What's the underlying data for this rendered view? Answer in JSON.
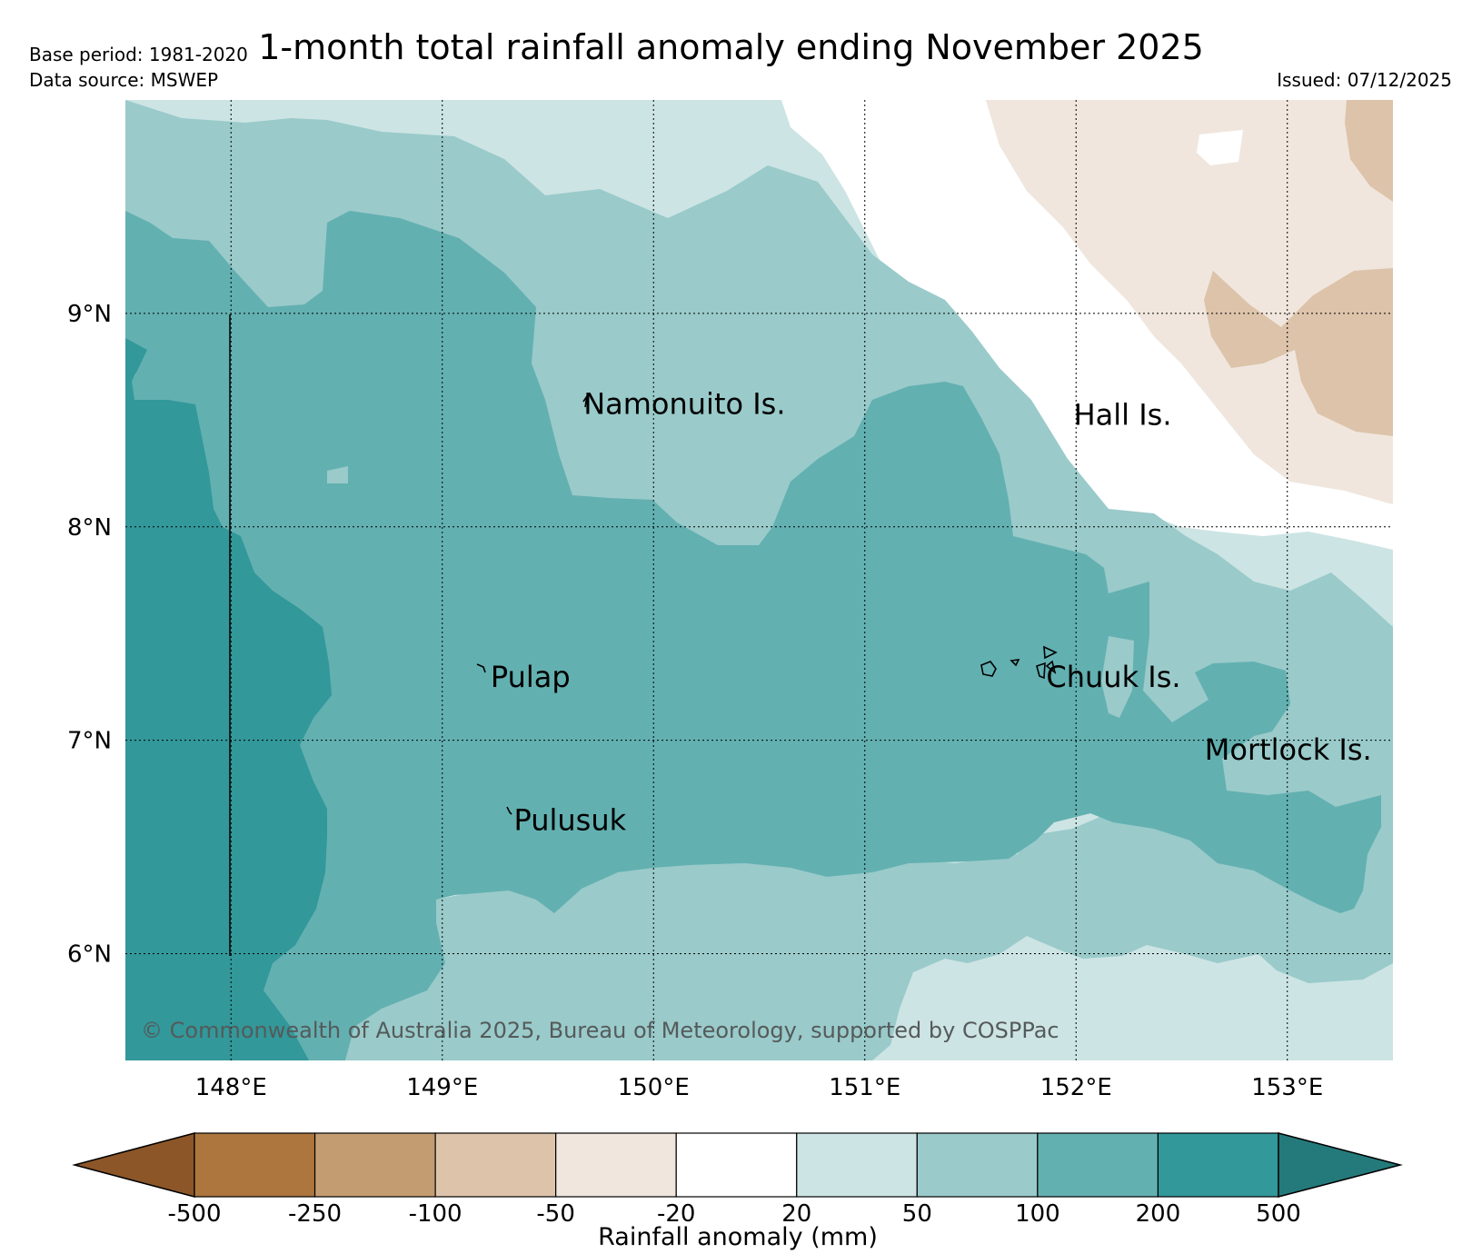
{
  "title": "1-month total rainfall anomaly ending November 2025",
  "base_period": "Base period: 1981-2020",
  "data_source": "Data source: MSWEP",
  "issued": "Issued: 07/12/2025",
  "copyright": "© Commonwealth of Australia 2025, Bureau of Meteorology, supported by COSPPac",
  "extent": {
    "lon_min": 147.5,
    "lon_max": 153.5,
    "lat_min": 5.5,
    "lat_max": 10.0
  },
  "lon_ticks": [
    {
      "value": 148,
      "label": "148°E"
    },
    {
      "value": 149,
      "label": "149°E"
    },
    {
      "value": 150,
      "label": "150°E"
    },
    {
      "value": 151,
      "label": "151°E"
    },
    {
      "value": 152,
      "label": "152°E"
    },
    {
      "value": 153,
      "label": "153°E"
    }
  ],
  "lat_ticks": [
    {
      "value": 9,
      "label": "9°N"
    },
    {
      "value": 8,
      "label": "8°N"
    },
    {
      "value": 7,
      "label": "7°N"
    },
    {
      "value": 6,
      "label": "6°N"
    }
  ],
  "places": [
    {
      "name": "Namonuito Is.",
      "lon": 149.66,
      "lat": 8.58
    },
    {
      "name": "Hall Is.",
      "lon": 151.98,
      "lat": 8.53
    },
    {
      "name": "Pulap",
      "lon": 149.22,
      "lat": 7.3
    },
    {
      "name": "Chuuk Is.",
      "lon": 151.85,
      "lat": 7.3
    },
    {
      "name": "Mortlock Is.",
      "lon": 152.6,
      "lat": 6.96
    },
    {
      "name": "Pulusuk",
      "lon": 149.33,
      "lat": 6.63
    }
  ],
  "colorbar": {
    "label": "Rainfall anomaly (mm)",
    "ticks": [
      "-500",
      "-250",
      "-100",
      "-50",
      "-20",
      "20",
      "50",
      "100",
      "200",
      "500"
    ],
    "colors": [
      "#8c5628",
      "#ad763e",
      "#c49c72",
      "#dcc3aa",
      "#f0e6dd",
      "#ffffff",
      "#cde4e4",
      "#9acaca",
      "#63b0b1",
      "#32989a",
      "#247a7b"
    ]
  }
}
